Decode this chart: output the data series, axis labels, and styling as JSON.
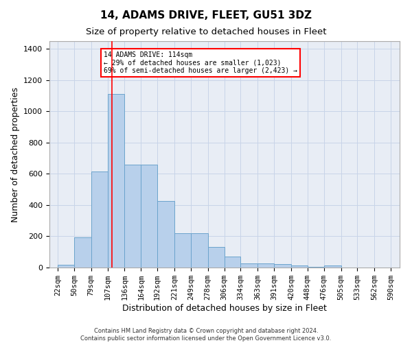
{
  "title": "14, ADAMS DRIVE, FLEET, GU51 3DZ",
  "subtitle": "Size of property relative to detached houses in Fleet",
  "xlabel": "Distribution of detached houses by size in Fleet",
  "ylabel": "Number of detached properties",
  "footer_line1": "Contains HM Land Registry data © Crown copyright and database right 2024.",
  "footer_line2": "Contains public sector information licensed under the Open Government Licence v3.0.",
  "bar_values": [
    18,
    195,
    615,
    1110,
    660,
    660,
    425,
    218,
    218,
    130,
    72,
    28,
    28,
    20,
    12,
    5,
    12,
    0,
    0,
    0
  ],
  "bin_edges": [
    22,
    50,
    79,
    107,
    136,
    164,
    192,
    221,
    249,
    278,
    306,
    334,
    363,
    391,
    420,
    448,
    476,
    505,
    533,
    562,
    590
  ],
  "bar_color": "#b8d0eb",
  "bar_edgecolor": "#6aa3cc",
  "property_line_x": 114,
  "property_line_color": "red",
  "annotation_text": "14 ADAMS DRIVE: 114sqm\n← 29% of detached houses are smaller (1,023)\n69% of semi-detached houses are larger (2,423) →",
  "ylim": [
    0,
    1450
  ],
  "yticks": [
    0,
    200,
    400,
    600,
    800,
    1000,
    1200,
    1400
  ],
  "xlim_left": 8,
  "xlim_right": 605,
  "grid_color": "#c8d4e8",
  "bg_color": "#e8edf5",
  "title_fontsize": 11,
  "subtitle_fontsize": 9.5,
  "xlabel_fontsize": 9,
  "ylabel_fontsize": 9,
  "tick_fontsize": 8,
  "footer_fontsize": 6
}
